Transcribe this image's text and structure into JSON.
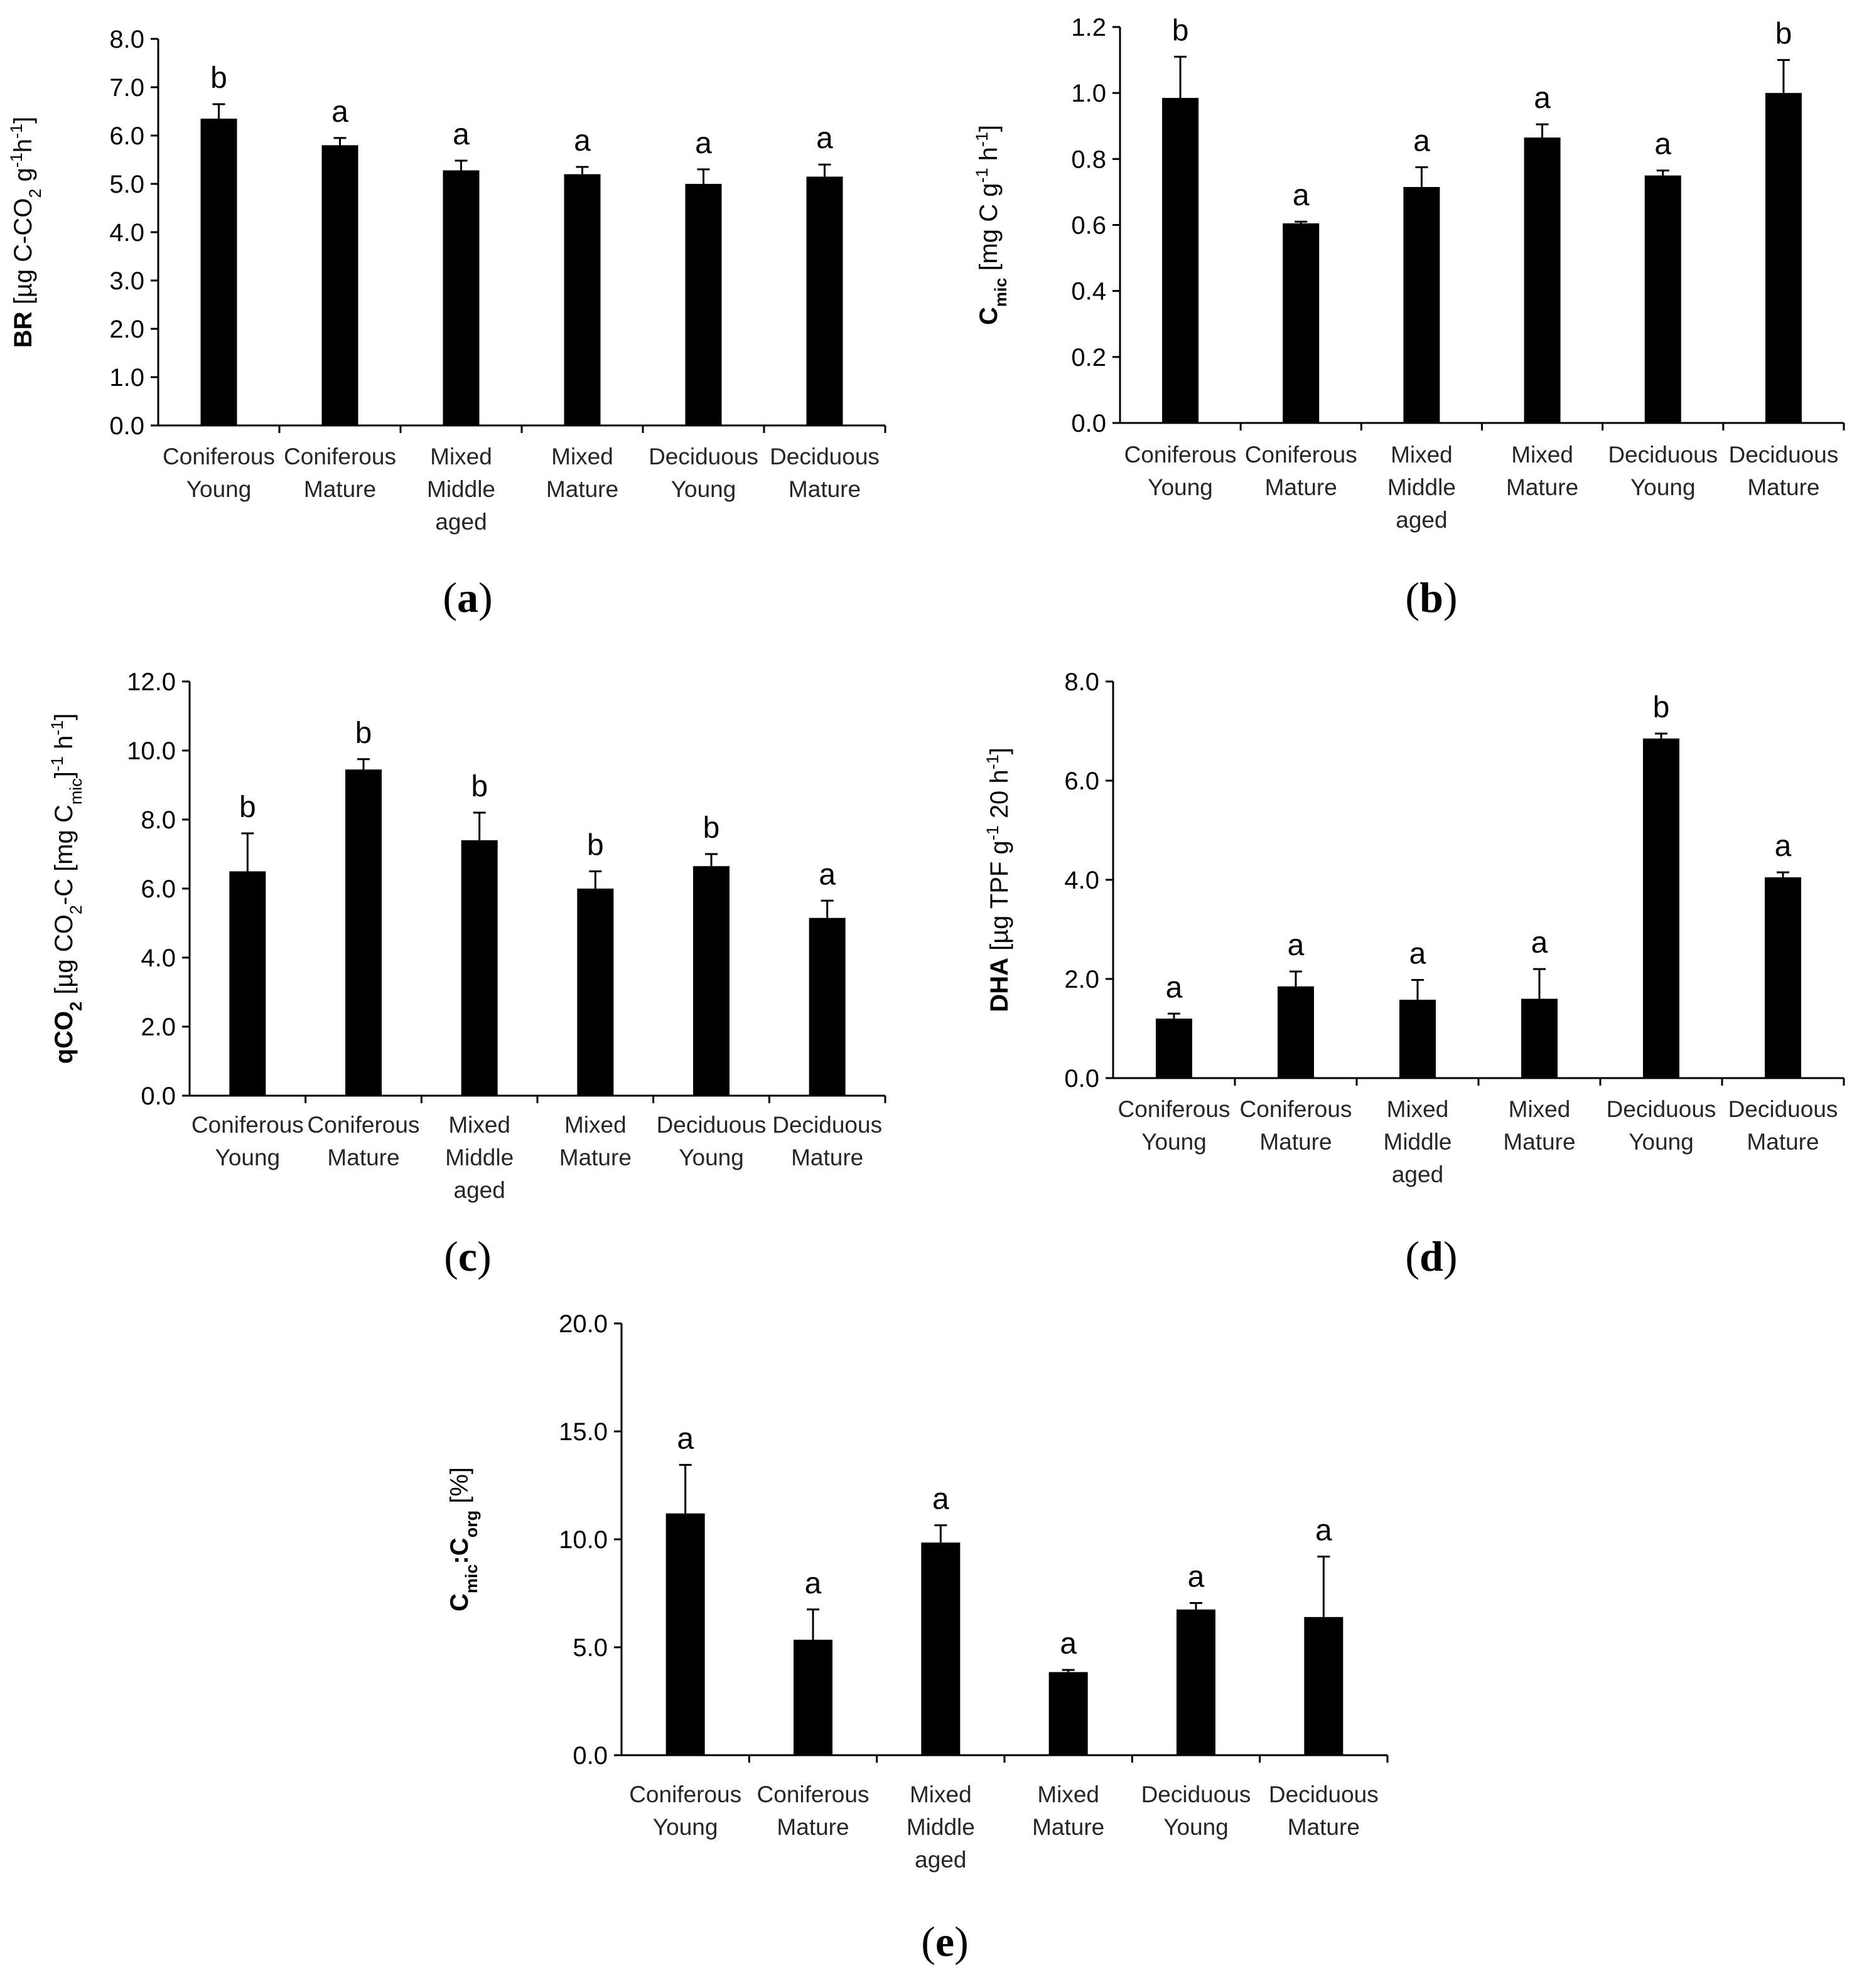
{
  "chart_data": [
    {
      "type": "bar",
      "panel_label": "a",
      "ylabel_parts": [
        {
          "t": "BR",
          "bold": true
        },
        {
          "t": " [µg C-CO"
        },
        {
          "t": "2",
          "sub": true
        },
        {
          "t": " g"
        },
        {
          "t": "-1",
          "sup": true
        },
        {
          "t": "h"
        },
        {
          "t": "-1",
          "sup": true
        },
        {
          "t": "]"
        }
      ],
      "categories": [
        [
          "Coniferous",
          "Young"
        ],
        [
          "Coniferous",
          "Mature"
        ],
        [
          "Mixed",
          "Middle",
          "aged"
        ],
        [
          "Mixed",
          "Mature"
        ],
        [
          "Deciduous",
          "Young"
        ],
        [
          "Deciduous",
          "Mature"
        ]
      ],
      "values": [
        6.35,
        5.8,
        5.28,
        5.2,
        5.0,
        5.15
      ],
      "errors": [
        0.3,
        0.15,
        0.2,
        0.15,
        0.3,
        0.25
      ],
      "significance": [
        "b",
        "a",
        "a",
        "a",
        "a",
        "a"
      ],
      "ylim": [
        0,
        8
      ],
      "yticks": [
        "0.0",
        "1.0",
        "2.0",
        "3.0",
        "4.0",
        "5.0",
        "6.0",
        "7.0",
        "8.0"
      ]
    },
    {
      "type": "bar",
      "panel_label": "b",
      "ylabel_parts": [
        {
          "t": "C",
          "bold": true
        },
        {
          "t": "mic",
          "sub": true,
          "bold": true
        },
        {
          "t": " [mg C g"
        },
        {
          "t": "-1",
          "sup": true
        },
        {
          "t": " h"
        },
        {
          "t": "-1",
          "sup": true
        },
        {
          "t": "]"
        }
      ],
      "categories": [
        [
          "Coniferous",
          "Young"
        ],
        [
          "Coniferous",
          "Mature"
        ],
        [
          "Mixed",
          "Middle",
          "aged"
        ],
        [
          "Mixed",
          "Mature"
        ],
        [
          "Deciduous",
          "Young"
        ],
        [
          "Deciduous",
          "Mature"
        ]
      ],
      "values": [
        0.985,
        0.605,
        0.715,
        0.865,
        0.75,
        1.0
      ],
      "errors": [
        0.125,
        0.005,
        0.06,
        0.04,
        0.015,
        0.1
      ],
      "significance": [
        "b",
        "a",
        "a",
        "a",
        "a",
        "b"
      ],
      "ylim": [
        0,
        1.2
      ],
      "yticks": [
        "0.0",
        "0.2",
        "0.4",
        "0.6",
        "0.8",
        "1.0",
        "1.2"
      ]
    },
    {
      "type": "bar",
      "panel_label": "c",
      "ylabel_parts": [
        {
          "t": "qCO",
          "bold": true
        },
        {
          "t": "2",
          "sub": true,
          "bold": true
        },
        {
          "t": " [µg CO"
        },
        {
          "t": "2",
          "sub": true
        },
        {
          "t": "-C [mg C"
        },
        {
          "t": "mic",
          "sub": true
        },
        {
          "t": "]"
        },
        {
          "t": "-1",
          "sup": true
        },
        {
          "t": " h"
        },
        {
          "t": "-1",
          "sup": true
        },
        {
          "t": "]"
        }
      ],
      "categories": [
        [
          "Coniferous",
          "Young"
        ],
        [
          "Coniferous",
          "Mature"
        ],
        [
          "Mixed",
          "Middle",
          "aged"
        ],
        [
          "Mixed",
          "Mature"
        ],
        [
          "Deciduous",
          "Young"
        ],
        [
          "Deciduous",
          "Mature"
        ]
      ],
      "values": [
        6.5,
        9.45,
        7.4,
        6.0,
        6.65,
        5.15
      ],
      "errors": [
        1.1,
        0.3,
        0.8,
        0.5,
        0.35,
        0.5
      ],
      "significance": [
        "b",
        "b",
        "b",
        "b",
        "b",
        "a"
      ],
      "ylim": [
        0,
        12
      ],
      "yticks": [
        "0.0",
        "2.0",
        "4.0",
        "6.0",
        "8.0",
        "10.0",
        "12.0"
      ]
    },
    {
      "type": "bar",
      "panel_label": "d",
      "ylabel_parts": [
        {
          "t": "DHA",
          "bold": true
        },
        {
          "t": " [µg TPF g"
        },
        {
          "t": "-1",
          "sup": true
        },
        {
          "t": " 20 h"
        },
        {
          "t": "-1",
          "sup": true
        },
        {
          "t": "]"
        }
      ],
      "categories": [
        [
          "Coniferous",
          "Young"
        ],
        [
          "Coniferous",
          "Mature"
        ],
        [
          "Mixed",
          "Middle",
          "aged"
        ],
        [
          "Mixed",
          "Mature"
        ],
        [
          "Deciduous",
          "Young"
        ],
        [
          "Deciduous",
          "Mature"
        ]
      ],
      "values": [
        1.2,
        1.85,
        1.58,
        1.6,
        6.85,
        4.05
      ],
      "errors": [
        0.1,
        0.3,
        0.4,
        0.6,
        0.1,
        0.1
      ],
      "significance": [
        "a",
        "a",
        "a",
        "a",
        "b",
        "a"
      ],
      "ylim": [
        0,
        8
      ],
      "yticks": [
        "0.0",
        "2.0",
        "4.0",
        "6.0",
        "8.0"
      ]
    },
    {
      "type": "bar",
      "panel_label": "e",
      "ylabel_parts": [
        {
          "t": "C",
          "bold": true
        },
        {
          "t": "mic",
          "sub": true,
          "bold": true
        },
        {
          "t": ":C",
          "bold": true
        },
        {
          "t": "org",
          "sub": true,
          "bold": true
        },
        {
          "t": " [%]"
        }
      ],
      "categories": [
        [
          "Coniferous",
          "Young"
        ],
        [
          "Coniferous",
          "Mature"
        ],
        [
          "Mixed",
          "Middle",
          "aged"
        ],
        [
          "Mixed",
          "Mature"
        ],
        [
          "Deciduous",
          "Young"
        ],
        [
          "Deciduous",
          "Mature"
        ]
      ],
      "values": [
        11.2,
        5.35,
        9.85,
        3.85,
        6.75,
        6.4
      ],
      "errors": [
        2.25,
        1.4,
        0.8,
        0.1,
        0.3,
        2.8
      ],
      "significance": [
        "a",
        "a",
        "a",
        "a",
        "a",
        "a"
      ],
      "ylim": [
        0,
        20
      ],
      "yticks": [
        "0.0",
        "5.0",
        "10.0",
        "15.0",
        "20.0"
      ]
    }
  ]
}
